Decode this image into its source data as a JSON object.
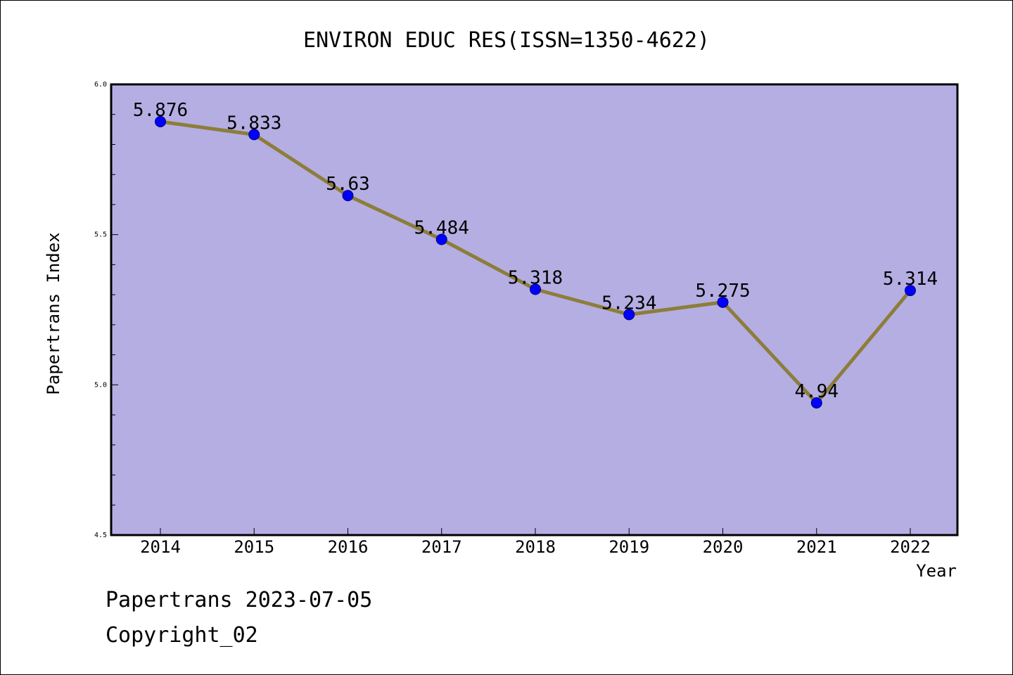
{
  "chart_data": {
    "type": "line",
    "title": "ENVIRON EDUC RES(ISSN=1350-4622)",
    "xlabel": "Year",
    "ylabel": "Papertrans Index",
    "categories": [
      "2014",
      "2015",
      "2016",
      "2017",
      "2018",
      "2019",
      "2020",
      "2021",
      "2022"
    ],
    "series": [
      {
        "values": [
          5.876,
          5.833,
          5.63,
          5.484,
          5.318,
          5.234,
          5.275,
          4.94,
          5.314
        ],
        "labels": [
          "5.876",
          "5.833",
          "5.63",
          "5.484",
          "5.318",
          "5.234",
          "5.275",
          "4.94",
          "5.314"
        ]
      }
    ],
    "ylim": [
      4.5,
      6.0
    ],
    "yticks": [
      "4.5",
      "5.0",
      "5.5",
      "6.0"
    ],
    "grid": false,
    "colors": {
      "plot_background": "#b5aee3",
      "line": "#8c7d3a",
      "marker": "#0000ff"
    }
  },
  "footer": {
    "line1": "Papertrans 2023-07-05",
    "line2": "Copyright_02"
  }
}
